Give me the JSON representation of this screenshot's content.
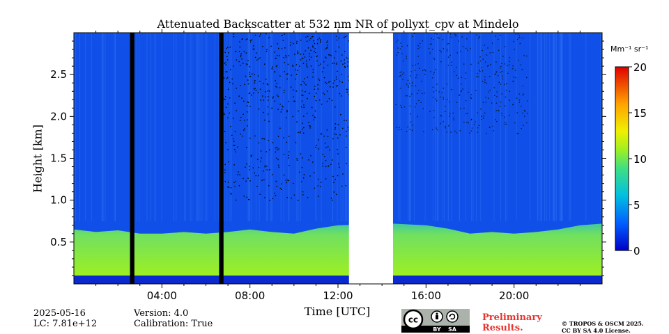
{
  "chart_data": {
    "type": "heatmap",
    "title": "Attenuated Backscatter at 532 nm NR of pollyxt_cpv at Mindelo",
    "xlabel": "Time [UTC]",
    "ylabel": "Height [km]",
    "xlim_hours": [
      0,
      24
    ],
    "ylim_km": [
      0,
      3.0
    ],
    "x_ticks": [
      {
        "hour": 4,
        "label": "04:00"
      },
      {
        "hour": 8,
        "label": "08:00"
      },
      {
        "hour": 12,
        "label": "12:00"
      },
      {
        "hour": 16,
        "label": "16:00"
      },
      {
        "hour": 20,
        "label": "20:00"
      }
    ],
    "y_ticks": [
      {
        "km": 0.5,
        "label": "0.5"
      },
      {
        "km": 1.0,
        "label": "1.0"
      },
      {
        "km": 1.5,
        "label": "1.5"
      },
      {
        "km": 2.0,
        "label": "2.0"
      },
      {
        "km": 2.5,
        "label": "2.5"
      }
    ],
    "colorbar": {
      "unit": "Mm⁻¹ sr⁻¹",
      "min": 0,
      "max": 20,
      "ticks": [
        {
          "value": 0,
          "label": "0"
        },
        {
          "value": 5,
          "label": "5"
        },
        {
          "value": 10,
          "label": "10"
        },
        {
          "value": 15,
          "label": "15"
        },
        {
          "value": 20,
          "label": "20"
        }
      ]
    },
    "no_data_gaps_hours": [
      [
        2.55,
        2.75
      ],
      [
        6.6,
        6.8
      ],
      [
        12.5,
        14.5
      ]
    ],
    "boundary_layer_top_km": {
      "hours": [
        0,
        1,
        2,
        3,
        4,
        5,
        6,
        7,
        8,
        9,
        10,
        11,
        12,
        14.5,
        16,
        17,
        18,
        19,
        20,
        21,
        22,
        23,
        24
      ],
      "values": [
        0.65,
        0.62,
        0.64,
        0.6,
        0.6,
        0.62,
        0.6,
        0.62,
        0.65,
        0.62,
        0.6,
        0.66,
        0.7,
        0.72,
        0.7,
        0.66,
        0.6,
        0.62,
        0.6,
        0.62,
        0.65,
        0.7,
        0.72
      ]
    },
    "background_value": 1.5,
    "boundary_layer_value": 8
  },
  "footer": {
    "date": "2025-05-16",
    "lc": "LC: 7.81e+12",
    "version": "Version: 4.0",
    "calibration": "Calibration: True",
    "preliminary_line1": "Preliminary",
    "preliminary_line2": "Results.",
    "copyright_line1": "© TROPOS & OSCM 2025.",
    "copyright_line2": "CC BY SA 4.0 License."
  },
  "license_badge": {
    "icons": [
      "cc-icon",
      "by-icon",
      "sa-icon"
    ],
    "by_label": "BY",
    "sa_label": "SA",
    "cc_label": "cc"
  }
}
